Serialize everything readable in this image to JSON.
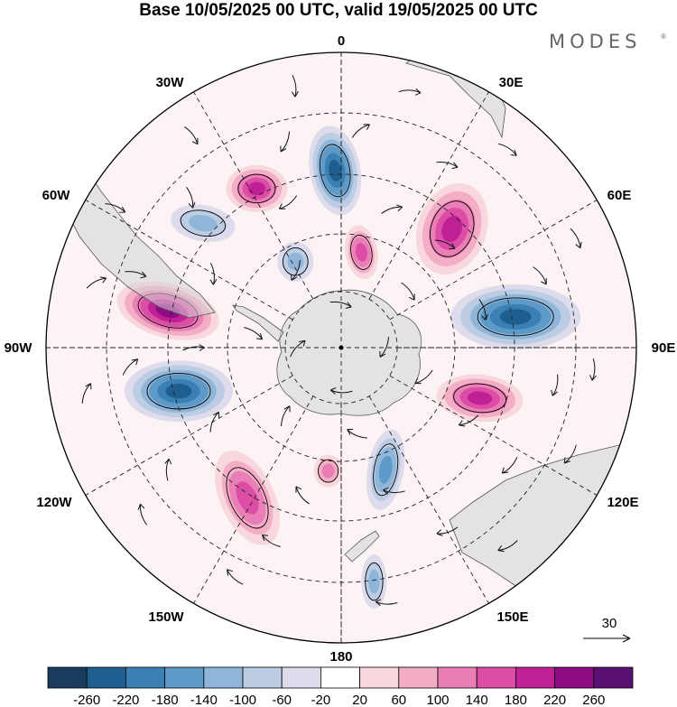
{
  "title": "Base 10/05/2025 00 UTC, valid 19/05/2025 00 UTC",
  "brand": {
    "name": "MODES",
    "mark": "®"
  },
  "projection": "south polar stereographic",
  "longitude_labels": [
    {
      "id": "0",
      "text": "0"
    },
    {
      "id": "30e",
      "text": "30E"
    },
    {
      "id": "60e",
      "text": "60E"
    },
    {
      "id": "90e",
      "text": "90E"
    },
    {
      "id": "120e",
      "text": "120E"
    },
    {
      "id": "150e",
      "text": "150E"
    },
    {
      "id": "180",
      "text": "180"
    },
    {
      "id": "150w",
      "text": "150W"
    },
    {
      "id": "120w",
      "text": "120W"
    },
    {
      "id": "90w",
      "text": "90W"
    },
    {
      "id": "60w",
      "text": "60W"
    },
    {
      "id": "30w",
      "text": "30W"
    }
  ],
  "reference_vector": {
    "label": "30"
  },
  "colorbar": {
    "tick_labels": [
      "-260",
      "-220",
      "-180",
      "-140",
      "-100",
      "-60",
      "-20",
      "20",
      "60",
      "100",
      "140",
      "180",
      "220",
      "260"
    ],
    "colors": [
      "#193c5e",
      "#1f5f8f",
      "#3a80b5",
      "#5e9ac8",
      "#8fb6d9",
      "#bccde3",
      "#dedcec",
      "#ffffff",
      "#f9d7de",
      "#f3aec6",
      "#ea7eb6",
      "#dc4ea6",
      "#bf2195",
      "#8f0c86",
      "#5a0f72"
    ]
  },
  "anomaly_fields": [
    {
      "sign": "neg",
      "lon": -2,
      "r": 0.6,
      "rx": 28,
      "ry": 50,
      "rot": -10,
      "level": 5
    },
    {
      "sign": "pos",
      "lon": -28,
      "r": 0.61,
      "rx": 34,
      "ry": 26,
      "rot": 0,
      "level": 4
    },
    {
      "sign": "neg",
      "lon": -48,
      "r": 0.63,
      "rx": 36,
      "ry": 20,
      "rot": 10,
      "level": 2
    },
    {
      "sign": "neg",
      "lon": -28,
      "r": 0.33,
      "rx": 20,
      "ry": 22,
      "rot": 0,
      "level": 2
    },
    {
      "sign": "pos",
      "lon": 12,
      "r": 0.33,
      "rx": 18,
      "ry": 30,
      "rot": -10,
      "level": 3
    },
    {
      "sign": "pos",
      "lon": 43,
      "r": 0.55,
      "rx": 38,
      "ry": 52,
      "rot": 20,
      "level": 4
    },
    {
      "sign": "neg",
      "lon": 80,
      "r": 0.6,
      "rx": 72,
      "ry": 36,
      "rot": 0,
      "level": 5
    },
    {
      "sign": "pos",
      "lon": 110,
      "r": 0.5,
      "rx": 48,
      "ry": 26,
      "rot": 5,
      "level": 4
    },
    {
      "sign": "neg",
      "lon": 160,
      "r": 0.44,
      "rx": 20,
      "ry": 45,
      "rot": 10,
      "level": 3
    },
    {
      "sign": "neg",
      "lon": 172,
      "r": 0.8,
      "rx": 14,
      "ry": 30,
      "rot": 0,
      "level": 2
    },
    {
      "sign": "pos",
      "lon": -174,
      "r": 0.42,
      "rx": 16,
      "ry": 18,
      "rot": 0,
      "level": 2
    },
    {
      "sign": "pos",
      "lon": -148,
      "r": 0.6,
      "rx": 30,
      "ry": 56,
      "rot": -25,
      "level": 3
    },
    {
      "sign": "neg",
      "lon": -105,
      "r": 0.57,
      "rx": 60,
      "ry": 34,
      "rot": 0,
      "level": 5
    },
    {
      "sign": "pos",
      "lon": -78,
      "r": 0.6,
      "rx": 58,
      "ry": 30,
      "rot": 15,
      "level": 5
    }
  ],
  "wind_vectors": [
    {
      "lon": -10,
      "r": 0.9,
      "dir": 90
    },
    {
      "lon": -35,
      "r": 0.88,
      "dir": 60
    },
    {
      "lon": -58,
      "r": 0.9,
      "dir": 30
    },
    {
      "lon": -75,
      "r": 0.86,
      "dir": -20
    },
    {
      "lon": -100,
      "r": 0.88,
      "dir": -60
    },
    {
      "lon": -130,
      "r": 0.88,
      "dir": -100
    },
    {
      "lon": -155,
      "r": 0.86,
      "dir": -130
    },
    {
      "lon": 170,
      "r": 0.88,
      "dir": -170
    },
    {
      "lon": 140,
      "r": 0.88,
      "dir": 160
    },
    {
      "lon": 115,
      "r": 0.86,
      "dir": 130
    },
    {
      "lon": 95,
      "r": 0.86,
      "dir": 100
    },
    {
      "lon": 65,
      "r": 0.88,
      "dir": 70
    },
    {
      "lon": 40,
      "r": 0.88,
      "dir": 40
    },
    {
      "lon": 15,
      "r": 0.9,
      "dir": 10
    },
    {
      "lon": -15,
      "r": 0.72,
      "dir": 120
    },
    {
      "lon": -45,
      "r": 0.72,
      "dir": 80
    },
    {
      "lon": -70,
      "r": 0.74,
      "dir": 20
    },
    {
      "lon": -95,
      "r": 0.72,
      "dir": -40
    },
    {
      "lon": -125,
      "r": 0.72,
      "dir": -80
    },
    {
      "lon": -160,
      "r": 0.7,
      "dir": -140
    },
    {
      "lon": 150,
      "r": 0.72,
      "dir": 170
    },
    {
      "lon": 125,
      "r": 0.7,
      "dir": 140
    },
    {
      "lon": 100,
      "r": 0.74,
      "dir": 110
    },
    {
      "lon": 70,
      "r": 0.72,
      "dir": 60
    },
    {
      "lon": 30,
      "r": 0.72,
      "dir": 20
    },
    {
      "lon": 5,
      "r": 0.74,
      "dir": -30
    },
    {
      "lon": -20,
      "r": 0.52,
      "dir": 150
    },
    {
      "lon": -60,
      "r": 0.5,
      "dir": 90
    },
    {
      "lon": -90,
      "r": 0.5,
      "dir": 0
    },
    {
      "lon": -120,
      "r": 0.5,
      "dir": -60
    },
    {
      "lon": -165,
      "r": 0.52,
      "dir": -120
    },
    {
      "lon": 160,
      "r": 0.52,
      "dir": -170
    },
    {
      "lon": 120,
      "r": 0.5,
      "dir": 160
    },
    {
      "lon": 75,
      "r": 0.5,
      "dir": 80
    },
    {
      "lon": 45,
      "r": 0.5,
      "dir": 30
    },
    {
      "lon": 20,
      "r": 0.5,
      "dir": -10
    },
    {
      "lon": -30,
      "r": 0.3,
      "dir": 120
    },
    {
      "lon": -80,
      "r": 0.3,
      "dir": 40
    },
    {
      "lon": -140,
      "r": 0.3,
      "dir": -60
    },
    {
      "lon": 170,
      "r": 0.3,
      "dir": -150
    },
    {
      "lon": 110,
      "r": 0.3,
      "dir": 150
    },
    {
      "lon": 50,
      "r": 0.3,
      "dir": 60
    },
    {
      "lon": 0,
      "r": 0.15,
      "dir": 20
    },
    {
      "lon": 90,
      "r": 0.15,
      "dir": 120
    },
    {
      "lon": -90,
      "r": 0.15,
      "dir": -40
    },
    {
      "lon": 180,
      "r": 0.15,
      "dir": -170
    }
  ]
}
